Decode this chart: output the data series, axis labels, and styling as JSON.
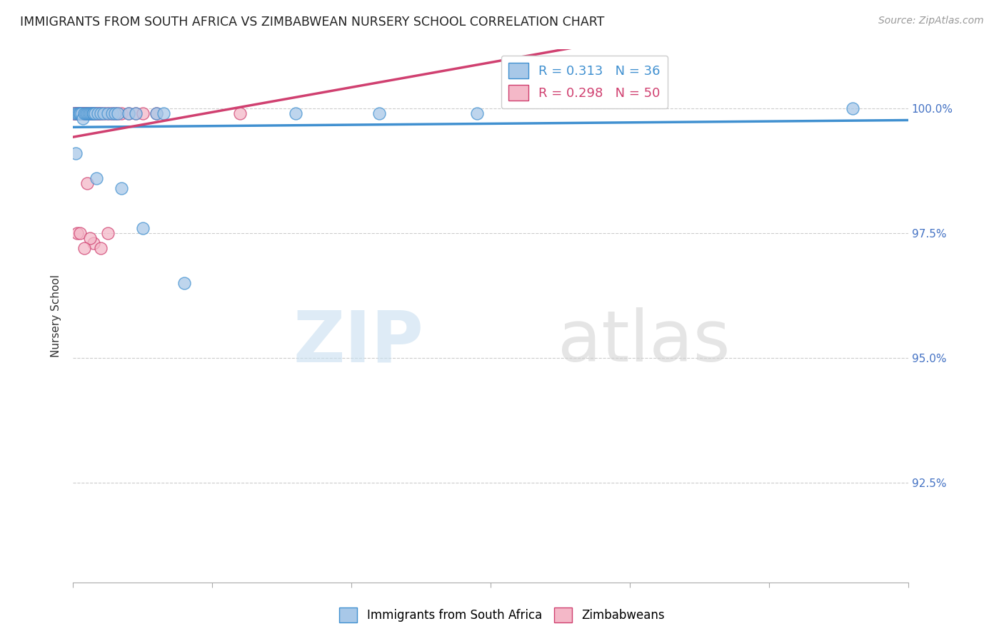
{
  "title": "IMMIGRANTS FROM SOUTH AFRICA VS ZIMBABWEAN NURSERY SCHOOL CORRELATION CHART",
  "source": "Source: ZipAtlas.com",
  "ylabel": "Nursery School",
  "ytick_labels": [
    "100.0%",
    "97.5%",
    "95.0%",
    "92.5%"
  ],
  "ytick_values": [
    1.0,
    0.975,
    0.95,
    0.925
  ],
  "xmin": 0.0,
  "xmax": 0.6,
  "ymin": 0.905,
  "ymax": 1.012,
  "legend1_label": "R = 0.313   N = 36",
  "legend2_label": "R = 0.298   N = 50",
  "blue_color": "#a8c8e8",
  "pink_color": "#f4b8c8",
  "trendline_blue": "#4090d0",
  "trendline_pink": "#d04070",
  "legend_label1": "Immigrants from South Africa",
  "legend_label2": "Zimbabweans",
  "blue_scatter_x": [
    0.001,
    0.002,
    0.003,
    0.004,
    0.005,
    0.005,
    0.006,
    0.007,
    0.008,
    0.009,
    0.01,
    0.011,
    0.012,
    0.013,
    0.014,
    0.015,
    0.016,
    0.017,
    0.018,
    0.02,
    0.022,
    0.025,
    0.028,
    0.03,
    0.032,
    0.035,
    0.04,
    0.045,
    0.05,
    0.06,
    0.065,
    0.08,
    0.16,
    0.22,
    0.29,
    0.56
  ],
  "blue_scatter_y": [
    0.999,
    0.991,
    0.999,
    0.999,
    0.999,
    0.999,
    0.999,
    0.998,
    0.999,
    0.999,
    0.999,
    0.999,
    0.999,
    0.999,
    0.999,
    0.999,
    0.999,
    0.986,
    0.999,
    0.999,
    0.999,
    0.999,
    0.999,
    0.999,
    0.999,
    0.984,
    0.999,
    0.999,
    0.976,
    0.999,
    0.999,
    0.965,
    0.999,
    0.999,
    0.999,
    1.0
  ],
  "pink_scatter_x": [
    0.001,
    0.001,
    0.002,
    0.002,
    0.003,
    0.003,
    0.004,
    0.004,
    0.005,
    0.005,
    0.006,
    0.006,
    0.007,
    0.007,
    0.008,
    0.008,
    0.009,
    0.009,
    0.01,
    0.01,
    0.011,
    0.012,
    0.013,
    0.014,
    0.015,
    0.016,
    0.017,
    0.018,
    0.019,
    0.02,
    0.022,
    0.024,
    0.026,
    0.028,
    0.03,
    0.032,
    0.035,
    0.04,
    0.045,
    0.05,
    0.003,
    0.005,
    0.015,
    0.02,
    0.025,
    0.06,
    0.12,
    0.01,
    0.012,
    0.008
  ],
  "pink_scatter_y": [
    0.999,
    0.999,
    0.999,
    0.999,
    0.999,
    0.999,
    0.999,
    0.999,
    0.999,
    0.999,
    0.999,
    0.999,
    0.999,
    0.999,
    0.999,
    0.999,
    0.999,
    0.999,
    0.999,
    0.999,
    0.999,
    0.999,
    0.999,
    0.999,
    0.999,
    0.999,
    0.999,
    0.999,
    0.999,
    0.999,
    0.999,
    0.999,
    0.999,
    0.999,
    0.999,
    0.999,
    0.999,
    0.999,
    0.999,
    0.999,
    0.975,
    0.975,
    0.973,
    0.972,
    0.975,
    0.999,
    0.999,
    0.985,
    0.974,
    0.972
  ]
}
